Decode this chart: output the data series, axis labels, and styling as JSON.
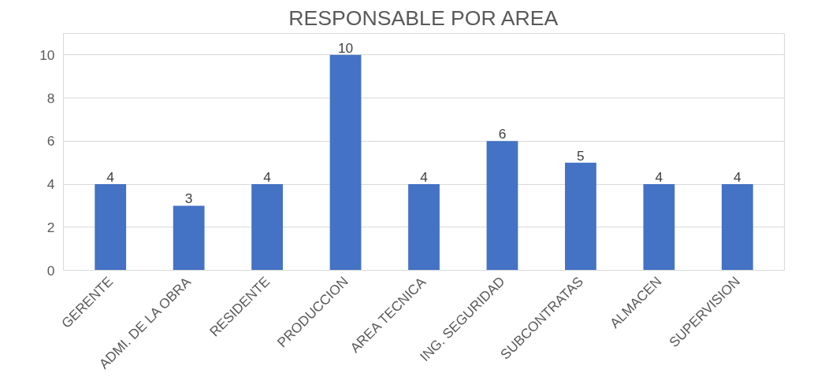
{
  "chart_data": {
    "type": "bar",
    "title": "RESPONSABLE POR AREA",
    "categories": [
      "GERENTE",
      "ADMI. DE LA OBRA",
      "RESIDENTE",
      "PRODUCCION",
      "AREA TECNICA",
      "ING. SEGURIDAD",
      "SUBCONTRATAS",
      "ALMACEN",
      "SUPERVISION"
    ],
    "values": [
      4,
      3,
      4,
      10,
      4,
      6,
      5,
      4,
      4
    ],
    "color": "#4472c4",
    "ylim": [
      0,
      11
    ],
    "yticks": [
      0,
      2,
      4,
      6,
      8,
      10
    ],
    "grid": "y",
    "data_labels": true
  }
}
